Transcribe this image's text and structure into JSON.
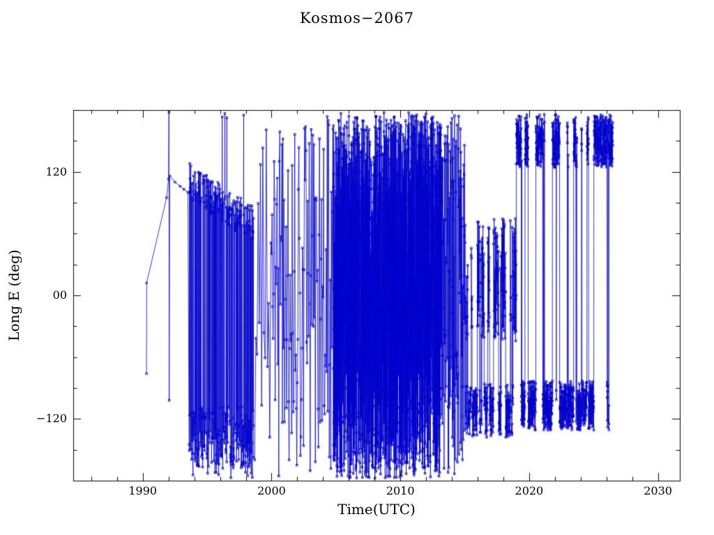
{
  "chart_data": {
    "type": "line",
    "title": "Kosmos−2067",
    "xlabel": "Time(UTC)",
    "ylabel": "Long E (deg)",
    "xlim": [
      1984.6,
      2031.7
    ],
    "ylim": [
      -180,
      180
    ],
    "xticks": {
      "major": [
        1990,
        2000,
        2010,
        2020,
        2030
      ],
      "labels": [
        "1990",
        "2000",
        "2010",
        "2020",
        "2030"
      ],
      "minor_step": 2
    },
    "yticks": {
      "major": [
        -120,
        0,
        120
      ],
      "labels": [
        "−120",
        "00",
        "120"
      ],
      "minor_step": 30
    },
    "color": "#0000cc",
    "frame_color": "#000000",
    "background": "#ffffff",
    "marker": "open-square",
    "marker_size": 2.6,
    "legend": "none",
    "grid": false,
    "description": "Sub-satellite longitude history with wrap-around at ±180 deg; wraps and rapid drift draw dense vertical lines between samples.",
    "segments": [
      {
        "mode": "points",
        "points": [
          [
            1990.29,
            -76
          ],
          [
            1990.3,
            12
          ],
          [
            1991.85,
            95
          ],
          [
            1992.0,
            113
          ],
          [
            1992.03,
            178
          ],
          [
            1992.05,
            -102
          ],
          [
            1992.1,
            116
          ],
          [
            1992.5,
            110
          ],
          [
            1992.9,
            106
          ],
          [
            1993.2,
            103
          ],
          [
            1993.5,
            100
          ]
        ]
      },
      {
        "mode": "libration",
        "t0": 1993.6,
        "t1": 1998.6,
        "step": 0.012,
        "upper_start": 112,
        "upper_end": 68,
        "upper_noise": 18,
        "lower_center": -138,
        "lower_noise": 30,
        "p_upper": 0.45,
        "p_wrap": 0.03
      },
      {
        "mode": "chaos",
        "t0": 1998.6,
        "t1": 2000.0,
        "step": 0.09,
        "amplitude": 178
      },
      {
        "mode": "chaos",
        "t0": 2000.0,
        "t1": 2004.8,
        "step": 0.04,
        "amplitude": 178
      },
      {
        "mode": "chaos",
        "t0": 2004.8,
        "t1": 2013.2,
        "step": 0.0045,
        "amplitude": 178
      },
      {
        "mode": "chaos",
        "t0": 2013.2,
        "t1": 2015.0,
        "step": 0.014,
        "amplitude": 178
      },
      {
        "mode": "bands",
        "t0": 2015.0,
        "t1": 2019.0,
        "step": 0.01,
        "bands": [
          [
            15,
            60
          ],
          [
            -112,
            26
          ]
        ],
        "switch_p": 0.06
      },
      {
        "mode": "bands",
        "t0": 2019.0,
        "t1": 2026.5,
        "step": 0.008,
        "bands": [
          [
            150,
            26
          ],
          [
            -107,
            24
          ]
        ],
        "switch_p": 0.03
      }
    ]
  }
}
